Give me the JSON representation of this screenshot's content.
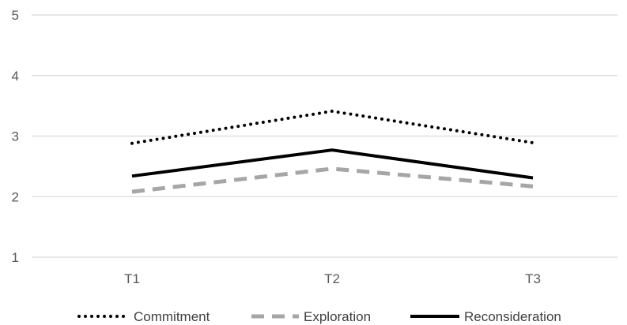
{
  "chart_data": {
    "type": "line",
    "title": "",
    "xlabel": "",
    "ylabel": "",
    "categories": [
      "T1",
      "T2",
      "T3"
    ],
    "ylim": [
      1,
      5
    ],
    "yticks": [
      "1",
      "2",
      "3",
      "4",
      "5"
    ],
    "grid": true,
    "legend_position": "bottom",
    "series": [
      {
        "name": "Commitment",
        "values": [
          2.88,
          3.41,
          2.89
        ],
        "color": "#000000",
        "line_style": "dotted"
      },
      {
        "name": "Exploration",
        "values": [
          2.08,
          2.46,
          2.17
        ],
        "color": "#a6a6a6",
        "line_style": "dashed"
      },
      {
        "name": "Reconsideration",
        "values": [
          2.34,
          2.77,
          2.31
        ],
        "color": "#000000",
        "line_style": "solid"
      }
    ]
  }
}
